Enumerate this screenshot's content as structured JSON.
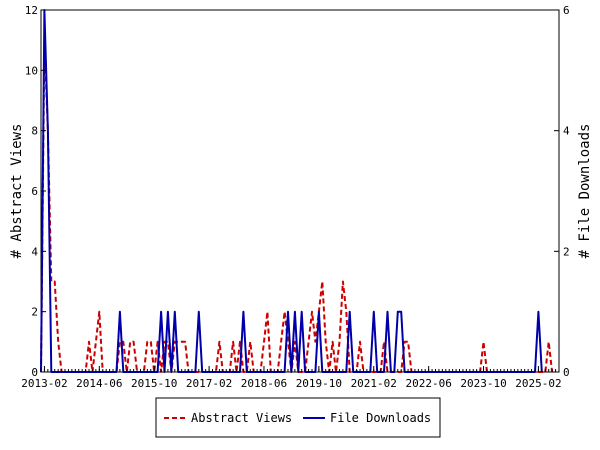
{
  "chart_data": {
    "type": "line",
    "title": "",
    "x_ticks": [
      "2013-02",
      "2014-06",
      "2015-10",
      "2017-02",
      "2018-06",
      "2019-10",
      "2021-02",
      "2022-06",
      "2023-10",
      "2025-02"
    ],
    "xlim": [
      "2013-01",
      "2025-08"
    ],
    "y_left": {
      "label": "# Abstract Views",
      "ylim": [
        0,
        12
      ],
      "ticks": [
        0,
        2,
        4,
        6,
        8,
        10,
        12
      ]
    },
    "y_right": {
      "label": "# File Downloads",
      "ylim": [
        0,
        6
      ],
      "ticks": [
        0,
        2,
        4,
        6
      ]
    },
    "grid": false,
    "legend_position": "bottom",
    "series": [
      {
        "name": "Abstract Views",
        "axis": "left",
        "color": "#cc0000",
        "dash": "dashed",
        "points": [
          [
            "2013-01",
            0
          ],
          [
            "2013-02",
            11
          ],
          [
            "2013-03",
            8
          ],
          [
            "2013-04",
            3
          ],
          [
            "2013-05",
            3
          ],
          [
            "2013-06",
            1
          ],
          [
            "2013-07",
            0
          ],
          [
            "2014-02",
            0
          ],
          [
            "2014-03",
            1
          ],
          [
            "2014-04",
            0
          ],
          [
            "2014-05",
            1
          ],
          [
            "2014-06",
            2
          ],
          [
            "2014-07",
            0
          ],
          [
            "2014-11",
            0
          ],
          [
            "2014-12",
            1
          ],
          [
            "2015-01",
            1
          ],
          [
            "2015-02",
            0
          ],
          [
            "2015-03",
            1
          ],
          [
            "2015-04",
            1
          ],
          [
            "2015-05",
            0
          ],
          [
            "2015-07",
            0
          ],
          [
            "2015-08",
            1
          ],
          [
            "2015-09",
            1
          ],
          [
            "2015-10",
            0
          ],
          [
            "2015-11",
            1
          ],
          [
            "2015-12",
            0
          ],
          [
            "2016-01",
            1
          ],
          [
            "2016-02",
            1
          ],
          [
            "2016-03",
            0
          ],
          [
            "2016-04",
            1
          ],
          [
            "2016-05",
            1
          ],
          [
            "2016-06",
            1
          ],
          [
            "2016-07",
            1
          ],
          [
            "2016-08",
            0
          ],
          [
            "2017-04",
            0
          ],
          [
            "2017-05",
            1
          ],
          [
            "2017-06",
            0
          ],
          [
            "2017-08",
            0
          ],
          [
            "2017-09",
            1
          ],
          [
            "2017-10",
            0
          ],
          [
            "2017-11",
            1
          ],
          [
            "2017-12",
            0
          ],
          [
            "2018-01",
            0
          ],
          [
            "2018-02",
            1
          ],
          [
            "2018-03",
            0
          ],
          [
            "2018-05",
            0
          ],
          [
            "2018-06",
            1
          ],
          [
            "2018-07",
            2
          ],
          [
            "2018-08",
            0
          ],
          [
            "2018-10",
            0
          ],
          [
            "2018-11",
            1
          ],
          [
            "2018-12",
            2
          ],
          [
            "2019-01",
            1
          ],
          [
            "2019-02",
            0
          ],
          [
            "2019-03",
            1
          ],
          [
            "2019-04",
            0
          ],
          [
            "2019-06",
            0
          ],
          [
            "2019-07",
            1
          ],
          [
            "2019-08",
            2
          ],
          [
            "2019-09",
            1
          ],
          [
            "2019-10",
            2
          ],
          [
            "2019-11",
            3
          ],
          [
            "2019-12",
            1
          ],
          [
            "2020-01",
            0
          ],
          [
            "2020-02",
            1
          ],
          [
            "2020-03",
            0
          ],
          [
            "2020-04",
            1
          ],
          [
            "2020-05",
            3
          ],
          [
            "2020-06",
            2
          ],
          [
            "2020-07",
            0
          ],
          [
            "2020-09",
            0
          ],
          [
            "2020-10",
            1
          ],
          [
            "2020-11",
            0
          ],
          [
            "2021-04",
            0
          ],
          [
            "2021-05",
            1
          ],
          [
            "2021-06",
            0
          ],
          [
            "2021-10",
            0
          ],
          [
            "2021-11",
            1
          ],
          [
            "2021-12",
            1
          ],
          [
            "2022-01",
            0
          ],
          [
            "2023-09",
            0
          ],
          [
            "2023-10",
            1
          ],
          [
            "2023-11",
            0
          ],
          [
            "2025-04",
            0
          ],
          [
            "2025-05",
            1
          ],
          [
            "2025-06",
            0
          ]
        ]
      },
      {
        "name": "File Downloads",
        "axis": "right",
        "color": "#0000aa",
        "dash": "solid",
        "points": [
          [
            "2013-01",
            0
          ],
          [
            "2013-02",
            6
          ],
          [
            "2013-03",
            4
          ],
          [
            "2013-04",
            0
          ],
          [
            "2014-11",
            0
          ],
          [
            "2014-12",
            1
          ],
          [
            "2015-01",
            0
          ],
          [
            "2015-11",
            0
          ],
          [
            "2015-12",
            1
          ],
          [
            "2016-01",
            0
          ],
          [
            "2016-02",
            1
          ],
          [
            "2016-03",
            0
          ],
          [
            "2016-04",
            1
          ],
          [
            "2016-05",
            0
          ],
          [
            "2016-10",
            0
          ],
          [
            "2016-11",
            1
          ],
          [
            "2016-12",
            0
          ],
          [
            "2017-11",
            0
          ],
          [
            "2017-12",
            1
          ],
          [
            "2018-01",
            0
          ],
          [
            "2018-12",
            0
          ],
          [
            "2019-01",
            1
          ],
          [
            "2019-02",
            0
          ],
          [
            "2019-03",
            1
          ],
          [
            "2019-04",
            0
          ],
          [
            "2019-05",
            1
          ],
          [
            "2019-06",
            0
          ],
          [
            "2019-09",
            0
          ],
          [
            "2019-10",
            1
          ],
          [
            "2019-11",
            0
          ],
          [
            "2020-06",
            0
          ],
          [
            "2020-07",
            1
          ],
          [
            "2020-08",
            0
          ],
          [
            "2021-01",
            0
          ],
          [
            "2021-02",
            1
          ],
          [
            "2021-03",
            0
          ],
          [
            "2021-05",
            0
          ],
          [
            "2021-06",
            1
          ],
          [
            "2021-07",
            0
          ],
          [
            "2021-08",
            0
          ],
          [
            "2021-09",
            1
          ],
          [
            "2021-10",
            1
          ],
          [
            "2021-11",
            0
          ],
          [
            "2025-01",
            0
          ],
          [
            "2025-02",
            1
          ],
          [
            "2025-03",
            0
          ]
        ]
      }
    ]
  }
}
